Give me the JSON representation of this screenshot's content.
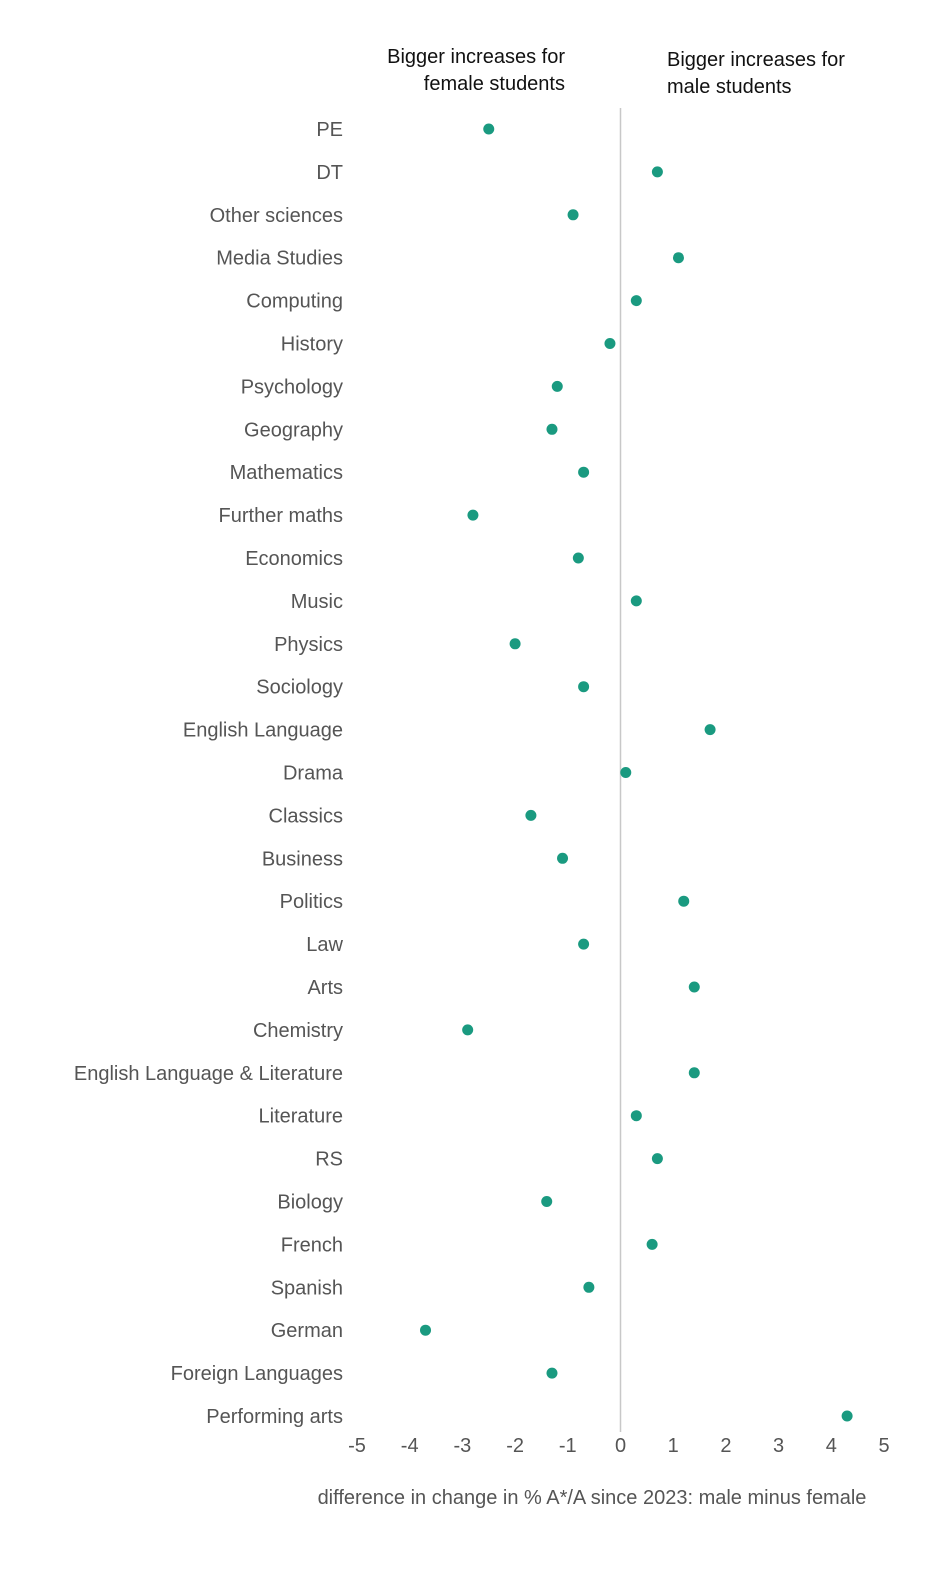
{
  "chart_data": {
    "type": "scatter",
    "categories": [
      "PE",
      "DT",
      "Other sciences",
      "Media Studies",
      "Computing",
      "History",
      "Psychology",
      "Geography",
      "Mathematics",
      "Further maths",
      "Economics",
      "Music",
      "Physics",
      "Sociology",
      "English Language",
      "Drama",
      "Classics",
      "Business",
      "Politics",
      "Law",
      "Arts",
      "Chemistry",
      "English Language & Literature",
      "Literature",
      "RS",
      "Biology",
      "French",
      "Spanish",
      "German",
      "Foreign Languages",
      "Performing arts"
    ],
    "values": [
      -2.5,
      0.7,
      -0.9,
      1.1,
      0.3,
      -0.2,
      -1.2,
      -1.3,
      -0.7,
      -2.8,
      -0.8,
      0.3,
      -2.0,
      -0.7,
      1.7,
      0.1,
      -1.7,
      -1.1,
      1.2,
      -0.7,
      1.4,
      -2.9,
      1.4,
      0.3,
      0.7,
      -1.4,
      0.6,
      -0.6,
      -3.7,
      -1.3,
      4.3
    ],
    "xlabel": "difference in change in % A*/A since 2023: male minus female",
    "xlim": [
      -5,
      5
    ],
    "xticks": [
      -5,
      -4,
      -3,
      -2,
      -1,
      0,
      1,
      2,
      3,
      4,
      5
    ],
    "annotations": {
      "left": [
        "Bigger increases for",
        "female students"
      ],
      "right": [
        "Bigger increases for",
        "male students"
      ]
    },
    "zero_line": true,
    "grid": false,
    "colors": {
      "marker": "#1a9a80",
      "zero_line": "#c8c8c8",
      "text": "#555555"
    }
  }
}
